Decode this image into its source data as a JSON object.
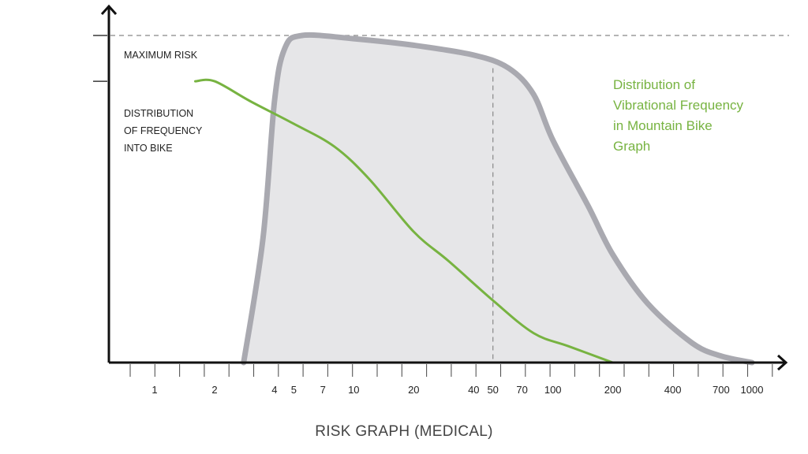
{
  "chart_data": {
    "type": "area",
    "xlabel": "RISK GRAPH (MEDICAL)",
    "x_scale": "log",
    "xlim": [
      1,
      1000
    ],
    "ylim": [
      0,
      1
    ],
    "x_ticks": [
      1,
      2,
      4,
      5,
      7,
      10,
      20,
      40,
      50,
      70,
      100,
      200,
      400,
      700,
      1000
    ],
    "x_tick_labels": [
      "1",
      "2",
      "4",
      "5",
      "7",
      "10",
      "20",
      "40",
      "50",
      "70",
      "100",
      "200",
      "400",
      "700",
      "1000"
    ],
    "y_reference_lines": [
      {
        "label": "MAXIMUM RISK",
        "value": 1.0
      },
      {
        "label": "",
        "value": 0.86
      }
    ],
    "vertical_marker": {
      "x": 50
    },
    "annotations": {
      "max_risk_label": "MAXIMUM RISK",
      "frequency_label_lines": [
        "DISTRIBUTION",
        "OF FREQUENCY",
        "INTO BIKE"
      ],
      "green_note_lines": [
        "Distribution of",
        "Vibrational Frequency",
        "in Mountain Bike",
        "Graph"
      ]
    },
    "colors": {
      "area_fill": "#e6e6e8",
      "area_stroke": "#a9a9b0",
      "frequency_line": "#77b341",
      "axis": "#111111",
      "reference_line": "#888888"
    },
    "series": [
      {
        "kind": "area",
        "points": [
          [
            2.8,
            0.0
          ],
          [
            3.5,
            0.38
          ],
          [
            4.0,
            0.8
          ],
          [
            4.5,
            0.96
          ],
          [
            5.5,
            1.0
          ],
          [
            10,
            0.99
          ],
          [
            20,
            0.97
          ],
          [
            40,
            0.94
          ],
          [
            60,
            0.9
          ],
          [
            80,
            0.82
          ],
          [
            100,
            0.68
          ],
          [
            150,
            0.48
          ],
          [
            200,
            0.33
          ],
          [
            300,
            0.18
          ],
          [
            500,
            0.06
          ],
          [
            700,
            0.02
          ],
          [
            1000,
            0.0
          ]
        ]
      },
      {
        "kind": "line",
        "points": [
          [
            1.6,
            0.86
          ],
          [
            2.0,
            0.86
          ],
          [
            3.0,
            0.8
          ],
          [
            5.0,
            0.73
          ],
          [
            8.0,
            0.66
          ],
          [
            12,
            0.56
          ],
          [
            20,
            0.4
          ],
          [
            30,
            0.31
          ],
          [
            50,
            0.19
          ],
          [
            80,
            0.09
          ],
          [
            120,
            0.05
          ],
          [
            200,
            0.0
          ]
        ]
      }
    ]
  }
}
